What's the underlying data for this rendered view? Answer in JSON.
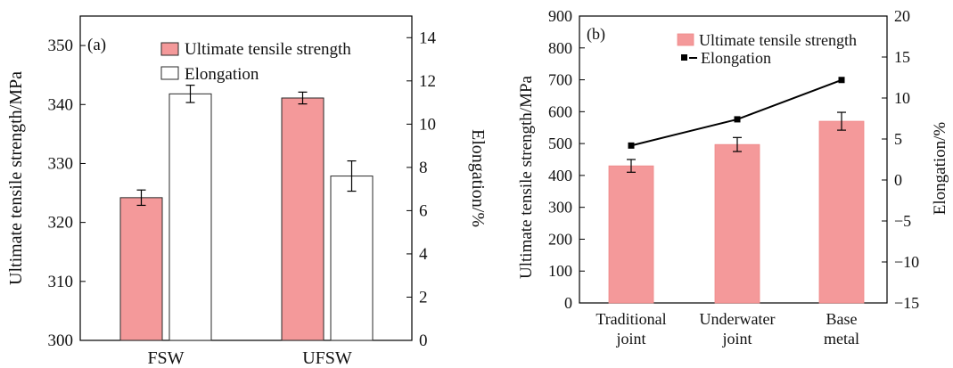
{
  "colors": {
    "bar": "#f4999a",
    "bar_stroke": "#2a2a2a",
    "line": "#000000"
  },
  "chart_data": [
    {
      "panel": "(a)",
      "type": "bar",
      "categories": [
        "FSW",
        "UFSW"
      ],
      "series": [
        {
          "name": "Ultimate tensile strength",
          "axis": "left",
          "values": [
            324.2,
            341.1
          ],
          "errors": [
            1.3,
            1.0
          ]
        },
        {
          "name": "Elongation",
          "axis": "right",
          "values": [
            11.4,
            7.6
          ],
          "errors": [
            0.4,
            0.7
          ]
        }
      ],
      "ylabel_left": "Ultimate tensile strength/MPa",
      "ylabel_right": "Elongation/%",
      "ylim_left": [
        300,
        355
      ],
      "ylim_right": [
        0,
        15
      ],
      "yticks_left": [
        300,
        310,
        320,
        330,
        340,
        350
      ],
      "yticks_right": [
        0,
        2,
        4,
        6,
        8,
        10,
        12,
        14
      ],
      "legend": "top-right",
      "grid": false
    },
    {
      "panel": "(b)",
      "type": "bar",
      "categories": [
        "Traditional joint",
        "Underwater joint",
        "Base metal"
      ],
      "category_lines": [
        [
          "Traditional",
          "joint"
        ],
        [
          "Underwater",
          "joint"
        ],
        [
          "Base",
          "metal"
        ]
      ],
      "series": [
        {
          "name": "Ultimate tensile strength",
          "type": "bar",
          "axis": "left",
          "values": [
            430,
            497,
            570
          ],
          "errors": [
            20,
            22,
            28
          ]
        },
        {
          "name": "Elongation",
          "type": "line",
          "axis": "right",
          "values": [
            4.2,
            7.4,
            12.2
          ]
        }
      ],
      "ylabel_left": "Ultimate tensile strength/MPa",
      "ylabel_right": "Elongation/%",
      "ylim_left": [
        0,
        900
      ],
      "ylim_right": [
        -15,
        20
      ],
      "yticks_left": [
        0,
        100,
        200,
        300,
        400,
        500,
        600,
        700,
        800,
        900
      ],
      "yticks_right": [
        -15,
        -10,
        -5,
        0,
        5,
        10,
        15,
        20
      ],
      "legend": "top-right",
      "grid": false
    }
  ]
}
